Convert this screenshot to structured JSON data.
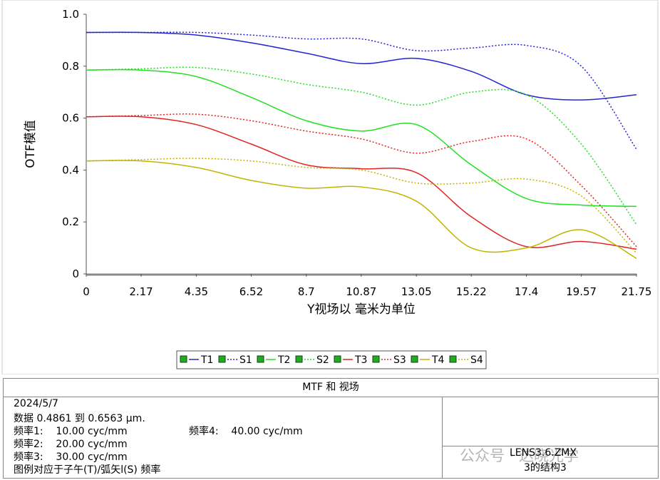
{
  "chart_data": {
    "type": "line",
    "y_label": "OTF模值",
    "x_label": "Y视场以 毫米为单位",
    "x": [
      0,
      2.17,
      4.35,
      6.52,
      8.7,
      10.87,
      13.05,
      15.22,
      17.4,
      19.57,
      21.75
    ],
    "xlim": [
      0,
      21.75
    ],
    "xticks": [
      0,
      2.17,
      4.35,
      6.52,
      8.7,
      10.87,
      13.05,
      15.22,
      17.4,
      19.57,
      21.75
    ],
    "ylim": [
      0,
      1
    ],
    "yticks": [
      0,
      0.2,
      0.4,
      0.6,
      0.8,
      {
        "value": 1,
        "label": "1.0"
      }
    ],
    "grid": false,
    "series": [
      {
        "name": "T1",
        "color": "#2424d4",
        "style": "solid",
        "values": [
          0.93,
          0.93,
          0.92,
          0.89,
          0.85,
          0.81,
          0.83,
          0.78,
          0.69,
          0.67,
          0.69
        ]
      },
      {
        "name": "S1",
        "color": "#2424d4",
        "style": "dotted",
        "values": [
          0.93,
          0.93,
          0.93,
          0.92,
          0.905,
          0.905,
          0.86,
          0.87,
          0.88,
          0.8,
          0.48
        ]
      },
      {
        "name": "T2",
        "color": "#22e022",
        "style": "solid",
        "values": [
          0.785,
          0.785,
          0.76,
          0.68,
          0.59,
          0.55,
          0.575,
          0.42,
          0.29,
          0.265,
          0.26
        ]
      },
      {
        "name": "S2",
        "color": "#22e022",
        "style": "dotted",
        "values": [
          0.785,
          0.79,
          0.795,
          0.77,
          0.73,
          0.7,
          0.65,
          0.7,
          0.69,
          0.5,
          0.19
        ]
      },
      {
        "name": "T3",
        "color": "#e02424",
        "style": "solid",
        "values": [
          0.605,
          0.605,
          0.575,
          0.5,
          0.42,
          0.405,
          0.39,
          0.22,
          0.105,
          0.125,
          0.095
        ]
      },
      {
        "name": "S3",
        "color": "#e02424",
        "style": "dotted",
        "values": [
          0.605,
          0.61,
          0.615,
          0.59,
          0.55,
          0.52,
          0.465,
          0.51,
          0.52,
          0.34,
          0.105
        ]
      },
      {
        "name": "T4",
        "color": "#c4b400",
        "style": "solid",
        "values": [
          0.435,
          0.435,
          0.41,
          0.36,
          0.33,
          0.335,
          0.28,
          0.1,
          0.1,
          0.17,
          0.06
        ]
      },
      {
        "name": "S4",
        "color": "#c4b400",
        "style": "dotted",
        "values": [
          0.435,
          0.44,
          0.445,
          0.435,
          0.41,
          0.4,
          0.35,
          0.35,
          0.365,
          0.3,
          0.08
        ]
      }
    ]
  },
  "panel": {
    "title": "MTF 和 视场",
    "date": "2024/5/7",
    "data_range": "数据 0.4861 到 0.6563 µm.",
    "freq1": "频率1:    10.00 cyc/mm",
    "freq4": "频率4:    40.00 cyc/mm",
    "freq2": "频率2:    20.00 cyc/mm",
    "freq3": "频率3:    30.00 cyc/mm",
    "legend_note": "图例对应于子午(T)/弧矢l(S) 频率",
    "file": "LENS3.6.ZMX",
    "config": "3的结构3",
    "watermark": "公众号 · 达晓光学"
  }
}
